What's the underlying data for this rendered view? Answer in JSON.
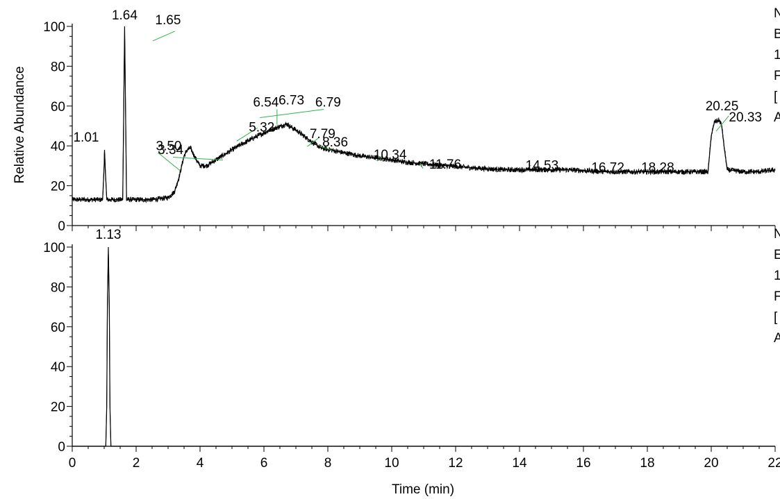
{
  "chart_data": [
    {
      "type": "line",
      "title": "",
      "xlabel": "",
      "ylabel": "Relative Abundance",
      "xlim": [
        0,
        22
      ],
      "ylim": [
        0,
        100
      ],
      "y_ticks": [
        "0",
        "20",
        "40",
        "60",
        "80",
        "100"
      ],
      "grid": false,
      "side_text": [
        "N",
        "B",
        "1",
        "F",
        "[",
        "A"
      ],
      "series": [
        {
          "x": [
            0.0,
            0.5,
            0.95,
            1.0,
            1.01,
            1.03,
            1.08,
            1.3,
            1.58,
            1.62,
            1.64,
            1.66,
            1.7,
            2.0,
            2.5,
            3.0,
            3.2,
            3.34,
            3.5,
            3.6,
            3.7,
            3.85,
            4.0,
            4.2,
            4.5,
            5.0,
            5.32,
            5.8,
            6.2,
            6.54,
            6.73,
            6.79,
            7.0,
            7.5,
            7.79,
            8.36,
            9.0,
            10.0,
            10.34,
            11.0,
            11.76,
            12.5,
            13.5,
            14.53,
            15.5,
            16.72,
            17.5,
            18.28,
            19.0,
            19.9,
            20.0,
            20.1,
            20.25,
            20.33,
            20.4,
            20.5,
            21.0,
            21.5,
            22.0
          ],
          "y": [
            13,
            13,
            13,
            30,
            38,
            30,
            13,
            13,
            13,
            70,
            100,
            70,
            13,
            13,
            13,
            14,
            17,
            24,
            35,
            38,
            39,
            34,
            30,
            30,
            33,
            38,
            41,
            45,
            48,
            50,
            51,
            50,
            48,
            42,
            39,
            37,
            35,
            33,
            32,
            31,
            30,
            29,
            28,
            28,
            28,
            27,
            27,
            27,
            27,
            27,
            45,
            52,
            53,
            50,
            40,
            28,
            27,
            27,
            28
          ]
        }
      ],
      "annotations": [
        {
          "label": "1.01",
          "x": 1.01,
          "y": 38
        },
        {
          "label": "1.64",
          "x": 1.64,
          "y": 100
        },
        {
          "label": "1.65",
          "x": 1.65,
          "y": 92
        },
        {
          "label": "3.34",
          "x": 3.34,
          "y": 24
        },
        {
          "label": "3.50",
          "x": 3.5,
          "y": 35
        },
        {
          "label": "5.32",
          "x": 5.32,
          "y": 41
        },
        {
          "label": "6.54",
          "x": 6.54,
          "y": 50
        },
        {
          "label": "6.73",
          "x": 6.73,
          "y": 51
        },
        {
          "label": "6.79",
          "x": 6.79,
          "y": 50
        },
        {
          "label": "7.79",
          "x": 7.79,
          "y": 39
        },
        {
          "label": "8.36",
          "x": 8.36,
          "y": 37
        },
        {
          "label": "10.34",
          "x": 10.34,
          "y": 32
        },
        {
          "label": "11.76",
          "x": 11.76,
          "y": 30
        },
        {
          "label": "14.53",
          "x": 14.53,
          "y": 28
        },
        {
          "label": "16.72",
          "x": 16.72,
          "y": 27
        },
        {
          "label": "18.28",
          "x": 18.28,
          "y": 27
        },
        {
          "label": "20.25",
          "x": 20.25,
          "y": 53
        },
        {
          "label": "20.33",
          "x": 20.33,
          "y": 46
        }
      ]
    },
    {
      "type": "line",
      "title": "",
      "xlabel": "Time (min)",
      "ylabel": "",
      "xlim": [
        0,
        22
      ],
      "ylim": [
        0,
        100
      ],
      "x_ticks": [
        "0",
        "2",
        "4",
        "6",
        "8",
        "10",
        "12",
        "14",
        "16",
        "18",
        "20",
        "22"
      ],
      "y_ticks": [
        "0",
        "20",
        "40",
        "60",
        "80",
        "100"
      ],
      "grid": false,
      "side_text": [
        "N",
        "E",
        "1",
        "F",
        "[",
        "A"
      ],
      "series": [
        {
          "x": [
            0.0,
            1.0,
            1.05,
            1.08,
            1.1,
            1.13,
            1.16,
            1.18,
            1.21,
            1.3,
            22.0
          ],
          "y": [
            0,
            0,
            0,
            20,
            70,
            100,
            70,
            20,
            0,
            0,
            0
          ]
        }
      ],
      "annotations": [
        {
          "label": "1.13",
          "x": 1.13,
          "y": 100
        }
      ]
    }
  ]
}
